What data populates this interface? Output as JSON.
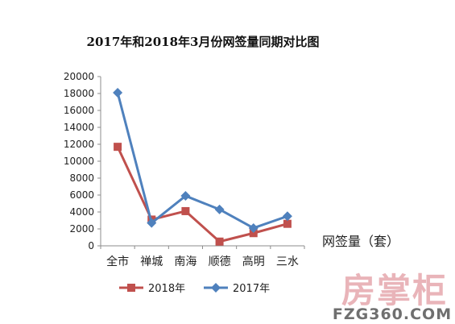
{
  "chart_data": {
    "type": "line",
    "title": "2017年和2018年3月份网签量同期对比图",
    "ylabel": "网签量（套）",
    "xlabel": "",
    "categories": [
      "全市",
      "禅城",
      "南海",
      "顺德",
      "高明",
      "三水"
    ],
    "ylim": [
      0,
      20000
    ],
    "yticks": [
      0,
      2000,
      4000,
      6000,
      8000,
      10000,
      12000,
      14000,
      16000,
      18000,
      20000
    ],
    "grid": false,
    "legend_position": "bottom",
    "series": [
      {
        "name": "2018年",
        "color": "#c0504d",
        "marker": "square",
        "values": [
          11700,
          3100,
          4100,
          500,
          1500,
          2600
        ]
      },
      {
        "name": "2017年",
        "color": "#4f81bd",
        "marker": "diamond",
        "values": [
          18100,
          2700,
          5900,
          4300,
          2100,
          3500
        ]
      }
    ]
  },
  "watermark": {
    "brand": "房掌柜",
    "url": "FZG360.COM"
  }
}
